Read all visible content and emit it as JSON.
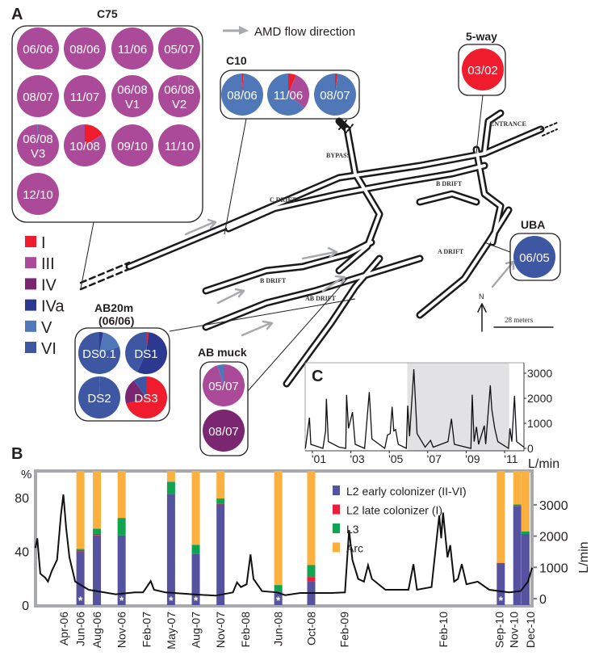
{
  "colors": {
    "I": "#ef1c2e",
    "III": "#ab4a98",
    "IV": "#7a2670",
    "IVa": "#2b3990",
    "V": "#5078b9",
    "VI": "#3d57a3",
    "early": "#5553a0",
    "late": "#ec1c3a",
    "L3": "#0fa550",
    "Arc": "#fbb040",
    "flow_arrow": "#a7a9ac",
    "shade": "#e2e2e4"
  },
  "panel_a": {
    "label": "A",
    "flow_legend": "AMD flow direction",
    "legend": [
      {
        "key": "I",
        "label": "I"
      },
      {
        "key": "III",
        "label": "III"
      },
      {
        "key": "IV",
        "label": "IV"
      },
      {
        "key": "IVa",
        "label": "IVa"
      },
      {
        "key": "V",
        "label": "V"
      },
      {
        "key": "VI",
        "label": "VI"
      }
    ],
    "map_labels": {
      "entrance": "ENTRANCE",
      "bypass": "BYPASS",
      "c_drift": "C DRIFT",
      "b_drift_upper": "B DRIFT",
      "b_drift_lower": "B DRIFT",
      "a_drift": "A DRIFT",
      "ab_drift": "AB DRIFT",
      "north": "N",
      "scale": "28 meters"
    },
    "sites": [
      {
        "id": "c75",
        "title": "C75",
        "pies": [
          {
            "label": [
              "06/06"
            ],
            "comp": {
              "III": 100
            }
          },
          {
            "label": [
              "08/06"
            ],
            "comp": {
              "III": 100
            }
          },
          {
            "label": [
              "11/06"
            ],
            "comp": {
              "III": 100
            }
          },
          {
            "label": [
              "05/07"
            ],
            "comp": {
              "III": 100
            }
          },
          {
            "label": [
              "08/07"
            ],
            "comp": {
              "III": 100
            }
          },
          {
            "label": [
              "11/07"
            ],
            "comp": {
              "III": 100
            }
          },
          {
            "label": [
              "06/08",
              "V1"
            ],
            "comp": {
              "III": 100
            }
          },
          {
            "label": [
              "06/08",
              "V2"
            ],
            "comp": {
              "V": 0.5,
              "III": 99.5
            }
          },
          {
            "label": [
              "06/08",
              "V3"
            ],
            "comp": {
              "V": 0.5,
              "III": 99.5
            }
          },
          {
            "label": [
              "10/08"
            ],
            "comp": {
              "I": 16,
              "III": 84
            }
          },
          {
            "label": [
              "09/10"
            ],
            "comp": {
              "III": 100
            }
          },
          {
            "label": [
              "11/10"
            ],
            "comp": {
              "III": 100
            }
          },
          {
            "label": [
              "12/10"
            ],
            "comp": {
              "III": 100
            }
          }
        ]
      },
      {
        "id": "c10",
        "title": "C10",
        "pies": [
          {
            "label": [
              "08/06"
            ],
            "comp": {
              "I": 1,
              "V": 99
            }
          },
          {
            "label": [
              "11/06"
            ],
            "comp": {
              "I": 6,
              "III": 30,
              "V": 64
            }
          },
          {
            "label": [
              "08/07"
            ],
            "comp": {
              "I": 2,
              "V": 98
            }
          }
        ]
      },
      {
        "id": "fiveway",
        "title": "5-way",
        "pies": [
          {
            "label": [
              "03/02"
            ],
            "comp": {
              "I": 100
            }
          }
        ]
      },
      {
        "id": "uba",
        "title": "UBA",
        "pies": [
          {
            "label": [
              "06/05"
            ],
            "comp": {
              "VI": 100
            }
          }
        ]
      },
      {
        "id": "ab20m",
        "title": "AB20m",
        "subtitle": "(06/06)",
        "pies": [
          {
            "label": [
              "DS0.1"
            ],
            "comp": {
              "IVa": 3,
              "V": 17,
              "VI": 80
            }
          },
          {
            "label": [
              "DS1"
            ],
            "comp": {
              "I": 2,
              "IVa": 55,
              "VI": 43
            }
          },
          {
            "label": [
              "DS2"
            ],
            "comp": {
              "I": 0.5,
              "VI": 99.5
            }
          },
          {
            "label": [
              "DS3"
            ],
            "comp": {
              "I": 70,
              "IV": 20,
              "VI": 10
            }
          }
        ]
      },
      {
        "id": "abmuck",
        "title": "AB muck",
        "pies": [
          {
            "label": [
              "05/07"
            ],
            "comp": {
              "III": 95,
              "V": 5
            }
          },
          {
            "label": [
              "08/07"
            ],
            "comp": {
              "IV": 100
            }
          }
        ]
      }
    ]
  },
  "chart_data": [
    {
      "panel": "B",
      "type": "bar",
      "ylabel_left": "%",
      "ylabel_right": "L/min",
      "ylim_left": [
        0,
        100
      ],
      "yticks_left": [
        0,
        40,
        80
      ],
      "ylim_right": [
        -200,
        3600
      ],
      "yticks_right": [
        0,
        1000,
        2000,
        3000
      ],
      "legend_placement": "top-center",
      "series_names": [
        "L2 early colonizer (II-VI)",
        "L2 late colonizer (I)",
        "L3",
        "Arc"
      ],
      "categories": [
        "Jun-06",
        "Aug-06",
        "Nov-06",
        "May-07",
        "Aug-07",
        "Nov-07",
        "Jun-08",
        "Oct-08",
        "Sep-10",
        "Nov-10",
        "Dec-10"
      ],
      "series": [
        {
          "name": "L2 early colonizer (II-VI)",
          "key": "early",
          "values": [
            40,
            52,
            52,
            83,
            38,
            75,
            10,
            18,
            31,
            74,
            53
          ]
        },
        {
          "name": "L2 late colonizer (I)",
          "key": "late",
          "values": [
            1,
            1,
            0,
            0,
            0,
            0.5,
            0,
            3,
            0.5,
            0,
            0
          ]
        },
        {
          "name": "L3",
          "key": "L3",
          "values": [
            1,
            4,
            13,
            9,
            7,
            4,
            5,
            9,
            0,
            1,
            2
          ]
        },
        {
          "name": "Arc",
          "key": "Arc",
          "values": [
            58,
            43,
            35,
            8,
            55,
            20.5,
            85,
            70,
            68.5,
            25,
            45
          ]
        }
      ],
      "asterisk": [
        true,
        false,
        true,
        true,
        true,
        false,
        true,
        false,
        true,
        false,
        false
      ],
      "asterisk_label": "*",
      "xtick_labels": [
        "Apr-06",
        "Jun-06",
        "Aug-06",
        "Nov-06",
        "Feb-07",
        "May-07",
        "Aug-07",
        "Nov-07",
        "Feb-08",
        "Jun-08",
        "Oct-08",
        "Feb-09",
        "Feb-10",
        "Sep-10",
        "Nov-10",
        "Dec-10"
      ],
      "flow_line": {
        "units": "L/min",
        "points": [
          [
            "2006-01-01",
            1620
          ],
          [
            "2006-01-08",
            1930
          ],
          [
            "2006-01-19",
            800
          ],
          [
            "2006-02-07",
            670
          ],
          [
            "2006-02-17",
            545
          ],
          [
            "2006-03-01",
            890
          ],
          [
            "2006-03-20",
            1240
          ],
          [
            "2006-04-04",
            2660
          ],
          [
            "2006-04-13",
            3330
          ],
          [
            "2006-04-23",
            2270
          ],
          [
            "2006-05-05",
            1320
          ],
          [
            "2006-05-26",
            545
          ],
          [
            "2006-07-15",
            285
          ],
          [
            "2006-10-23",
            140
          ],
          [
            "2007-01-03",
            200
          ],
          [
            "2007-02-03",
            200
          ],
          [
            "2007-03-01",
            560
          ],
          [
            "2007-03-13",
            285
          ],
          [
            "2007-04-25",
            200
          ],
          [
            "2007-08-03",
            140
          ],
          [
            "2007-10-27",
            95
          ],
          [
            "2007-12-30",
            200
          ],
          [
            "2008-01-15",
            520
          ],
          [
            "2008-01-29",
            370
          ],
          [
            "2008-02-20",
            460
          ],
          [
            "2008-03-04",
            1410
          ],
          [
            "2008-03-15",
            630
          ],
          [
            "2008-04-16",
            240
          ],
          [
            "2008-06-12",
            200
          ],
          [
            "2008-07-10",
            110
          ],
          [
            "2008-09-05",
            180
          ],
          [
            "2008-12-29",
            180
          ],
          [
            "2009-02-18",
            200
          ],
          [
            "2009-03-03",
            2190
          ],
          [
            "2009-03-15",
            1240
          ],
          [
            "2009-04-06",
            630
          ],
          [
            "2009-04-27",
            545
          ],
          [
            "2009-05-12",
            1070
          ],
          [
            "2009-05-26",
            630
          ],
          [
            "2009-07-15",
            285
          ],
          [
            "2009-10-09",
            285
          ],
          [
            "2009-10-27",
            1100
          ],
          [
            "2009-11-10",
            285
          ],
          [
            "2010-01-03",
            370
          ],
          [
            "2010-01-24",
            2100
          ],
          [
            "2010-02-01",
            2660
          ],
          [
            "2010-02-08",
            1930
          ],
          [
            "2010-02-15",
            2750
          ],
          [
            "2010-03-01",
            1320
          ],
          [
            "2010-03-11",
            1710
          ],
          [
            "2010-03-25",
            545
          ],
          [
            "2010-04-09",
            630
          ],
          [
            "2010-04-23",
            1100
          ],
          [
            "2010-05-10",
            460
          ],
          [
            "2010-06-21",
            545
          ],
          [
            "2010-08-03",
            285
          ],
          [
            "2010-10-15",
            200
          ],
          [
            "2010-11-27",
            240
          ],
          [
            "2010-12-24",
            545
          ],
          [
            "2011-01-09",
            990
          ]
        ]
      }
    },
    {
      "panel": "C",
      "type": "line",
      "label": "C",
      "ylabel": "L/min",
      "ylim": [
        0,
        3300
      ],
      "yticks": [
        0,
        1000,
        2000,
        3000
      ],
      "xlim": [
        2000.3,
        2011.7
      ],
      "xtick_labels": [
        "'01",
        "'03",
        "'05",
        "'07",
        "'09",
        "'11"
      ],
      "xtick_years": [
        2001,
        2003,
        2005,
        2007,
        2009,
        2011
      ],
      "shaded_range": [
        2005.6,
        2010.9
      ],
      "points": [
        [
          2000.3,
          0
        ],
        [
          2000.51,
          1230
        ],
        [
          2000.58,
          160
        ],
        [
          2001.21,
          0
        ],
        [
          2001.35,
          700
        ],
        [
          2001.39,
          1980
        ],
        [
          2001.49,
          270
        ],
        [
          2002.05,
          50
        ],
        [
          2002.4,
          0
        ],
        [
          2002.44,
          2140
        ],
        [
          2002.54,
          800
        ],
        [
          2002.75,
          1450
        ],
        [
          2002.89,
          160
        ],
        [
          2003.38,
          0
        ],
        [
          2003.45,
          640
        ],
        [
          2003.62,
          2250
        ],
        [
          2003.76,
          375
        ],
        [
          2004.43,
          0
        ],
        [
          2004.57,
          535
        ],
        [
          2004.71,
          590
        ],
        [
          2004.81,
          1660
        ],
        [
          2004.9,
          700
        ],
        [
          2004.99,
          750
        ],
        [
          2005.13,
          160
        ],
        [
          2005.55,
          0
        ],
        [
          2005.62,
          1710
        ],
        [
          2005.72,
          480
        ],
        [
          2005.94,
          3160
        ],
        [
          2006.11,
          590
        ],
        [
          2006.53,
          50
        ],
        [
          2006.81,
          320
        ],
        [
          2006.95,
          50
        ],
        [
          2007.72,
          270
        ],
        [
          2007.9,
          1180
        ],
        [
          2008.05,
          160
        ],
        [
          2008.91,
          0
        ],
        [
          2008.98,
          2140
        ],
        [
          2009.08,
          270
        ],
        [
          2009.2,
          860
        ],
        [
          2009.31,
          160
        ],
        [
          2009.61,
          910
        ],
        [
          2009.68,
          160
        ],
        [
          2009.92,
          2520
        ],
        [
          2010.0,
          1550
        ],
        [
          2010.15,
          800
        ],
        [
          2010.31,
          270
        ],
        [
          2010.87,
          0
        ],
        [
          2010.94,
          800
        ],
        [
          2011.04,
          270
        ],
        [
          2011.18,
          2090
        ],
        [
          2011.29,
          270
        ],
        [
          2011.67,
          50
        ]
      ]
    }
  ],
  "panel_b_label": "B"
}
